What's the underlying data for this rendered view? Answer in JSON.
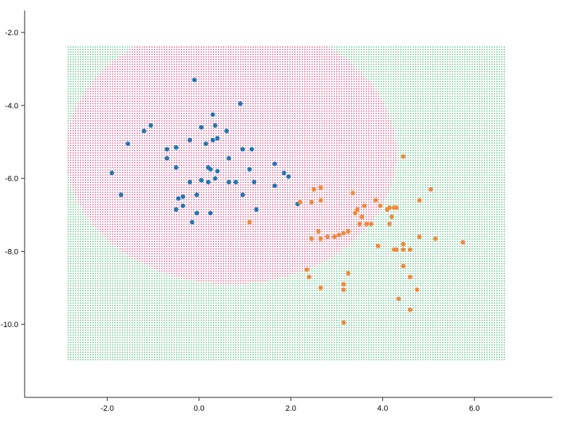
{
  "chart_data": {
    "type": "scatter",
    "title": "",
    "xlabel": "",
    "ylabel": "",
    "xlim": [
      -3.8,
      7.7
    ],
    "ylim": [
      -12.0,
      -1.4
    ],
    "x_ticks": [
      -2.0,
      0.0,
      2.0,
      4.0,
      6.0
    ],
    "y_ticks": [
      -2.0,
      -4.0,
      -6.0,
      -8.0,
      -10.0
    ],
    "tick_labels_x": [
      "-2.0",
      "0.0",
      "2.0",
      "4.0",
      "6.0"
    ],
    "tick_labels_y": [
      "-2.0",
      "-4.0",
      "-6.0",
      "-8.0",
      "-10.0"
    ],
    "grid": false,
    "legend": "none",
    "background_grid": {
      "x_range": [
        -2.85,
        6.7
      ],
      "y_range": [
        -11.0,
        -2.4
      ],
      "region_a_color": "#d6336c",
      "region_b_color": "#3cb371",
      "boundary_circle": {
        "cx": 0.7,
        "cy": -5.3,
        "r": 3.6
      }
    },
    "series": [
      {
        "color": "#1f77b4",
        "points": [
          [
            -0.1,
            -3.3
          ],
          [
            0.9,
            -3.95
          ],
          [
            0.3,
            -4.25
          ],
          [
            -1.05,
            -4.55
          ],
          [
            -1.2,
            -4.7
          ],
          [
            0.05,
            -4.6
          ],
          [
            0.35,
            -4.55
          ],
          [
            0.6,
            -4.7
          ],
          [
            -1.55,
            -5.05
          ],
          [
            -0.2,
            -4.95
          ],
          [
            0.4,
            -4.9
          ],
          [
            0.3,
            -4.95
          ],
          [
            0.15,
            -5.05
          ],
          [
            -0.5,
            -5.15
          ],
          [
            -0.7,
            -5.2
          ],
          [
            0.95,
            -5.2
          ],
          [
            1.15,
            -5.2
          ],
          [
            -0.7,
            -5.45
          ],
          [
            0.65,
            -5.45
          ],
          [
            0.25,
            -5.75
          ],
          [
            -0.5,
            -5.7
          ],
          [
            0.2,
            -5.7
          ],
          [
            1.1,
            -5.75
          ],
          [
            0.4,
            -5.8
          ],
          [
            -1.9,
            -5.85
          ],
          [
            1.85,
            -5.85
          ],
          [
            1.95,
            -5.95
          ],
          [
            0.05,
            -6.05
          ],
          [
            0.35,
            -6.0
          ],
          [
            0.65,
            -6.1
          ],
          [
            0.8,
            -6.1
          ],
          [
            0.2,
            -6.1
          ],
          [
            1.2,
            -6.1
          ],
          [
            -0.2,
            -6.1
          ],
          [
            1.65,
            -5.6
          ],
          [
            1.65,
            -6.2
          ],
          [
            -1.7,
            -6.45
          ],
          [
            0.95,
            -6.45
          ],
          [
            -0.05,
            -6.45
          ],
          [
            -0.35,
            -6.5
          ],
          [
            -0.45,
            -6.55
          ],
          [
            -0.35,
            -6.75
          ],
          [
            -0.5,
            -6.85
          ],
          [
            1.25,
            -6.85
          ],
          [
            -0.05,
            -6.95
          ],
          [
            0.25,
            -6.95
          ],
          [
            -0.15,
            -7.2
          ],
          [
            2.15,
            -6.7
          ]
        ]
      },
      {
        "color": "#f08a3c",
        "points": [
          [
            4.45,
            -5.4
          ],
          [
            2.65,
            -6.25
          ],
          [
            2.5,
            -6.3
          ],
          [
            3.35,
            -6.4
          ],
          [
            5.05,
            -6.3
          ],
          [
            2.65,
            -6.6
          ],
          [
            3.85,
            -6.6
          ],
          [
            4.8,
            -6.6
          ],
          [
            2.2,
            -6.65
          ],
          [
            2.45,
            -6.65
          ],
          [
            3.6,
            -6.75
          ],
          [
            3.95,
            -6.75
          ],
          [
            4.15,
            -6.8
          ],
          [
            4.25,
            -6.8
          ],
          [
            4.3,
            -6.8
          ],
          [
            4.1,
            -6.85
          ],
          [
            3.45,
            -6.85
          ],
          [
            3.4,
            -6.95
          ],
          [
            3.55,
            -7.05
          ],
          [
            4.2,
            -7.05
          ],
          [
            3.5,
            -7.25
          ],
          [
            3.75,
            -7.25
          ],
          [
            3.65,
            -7.25
          ],
          [
            4.15,
            -7.25
          ],
          [
            1.1,
            -7.2
          ],
          [
            2.6,
            -7.45
          ],
          [
            3.25,
            -7.45
          ],
          [
            3.15,
            -7.5
          ],
          [
            3.05,
            -7.55
          ],
          [
            2.95,
            -7.6
          ],
          [
            2.8,
            -7.6
          ],
          [
            2.65,
            -7.65
          ],
          [
            2.45,
            -7.65
          ],
          [
            4.8,
            -7.6
          ],
          [
            5.15,
            -7.65
          ],
          [
            5.75,
            -7.75
          ],
          [
            4.45,
            -7.8
          ],
          [
            3.9,
            -7.85
          ],
          [
            4.3,
            -7.95
          ],
          [
            4.45,
            -7.95
          ],
          [
            4.25,
            -7.95
          ],
          [
            4.6,
            -7.95
          ],
          [
            4.45,
            -8.4
          ],
          [
            2.35,
            -8.5
          ],
          [
            2.4,
            -8.7
          ],
          [
            3.25,
            -8.6
          ],
          [
            4.6,
            -8.7
          ],
          [
            3.15,
            -8.9
          ],
          [
            3.15,
            -9.05
          ],
          [
            4.75,
            -9.05
          ],
          [
            2.65,
            -9.0
          ],
          [
            4.35,
            -9.3
          ],
          [
            4.6,
            -9.6
          ],
          [
            3.15,
            -9.95
          ]
        ]
      }
    ]
  }
}
